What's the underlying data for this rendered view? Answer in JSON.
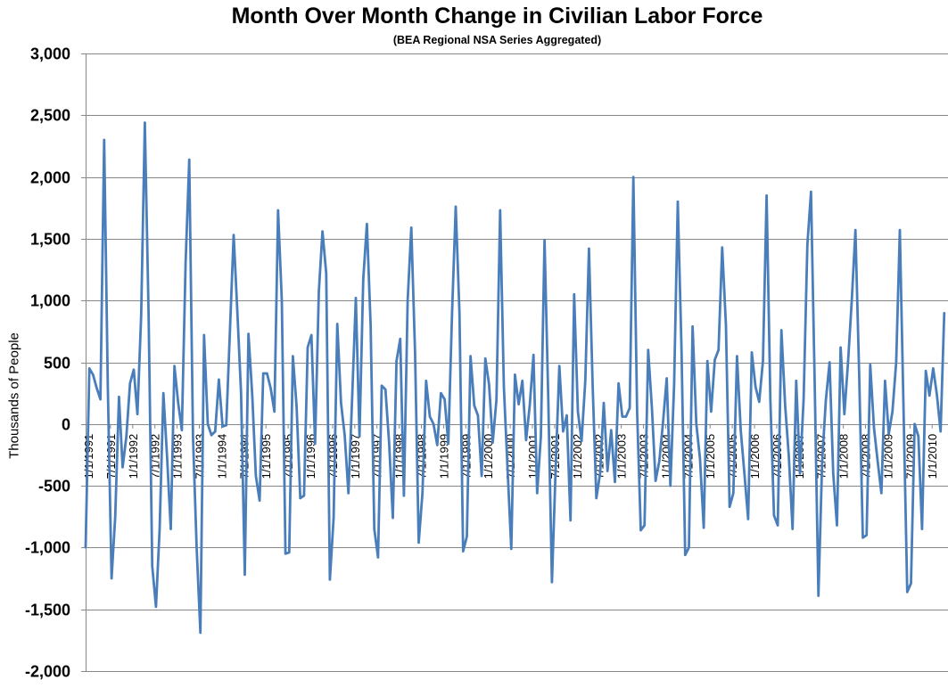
{
  "chart_data": {
    "type": "line",
    "title": "Month Over Month Change in Civilian Labor Force",
    "subtitle": "(BEA Regional NSA Series Aggregated)",
    "ylabel": "Thousands of People",
    "xlabel": "",
    "ylim": [
      -2000,
      3000
    ],
    "ytick_step": 500,
    "ytick_labels": [
      "3,000",
      "2,500",
      "2,000",
      "1,500",
      "1,000",
      "500",
      "0",
      "-500",
      "-1,000",
      "-1,500",
      "-2,000"
    ],
    "grid": "horizontal",
    "legend": "none",
    "line_color": "#4a7ebb",
    "x_start": "1/1/1991",
    "x_end": "1/1/2011",
    "x_tick_labels": [
      "1/1/1991",
      "7/1/1991",
      "1/1/1992",
      "7/1/1992",
      "1/1/1993",
      "7/1/1993",
      "1/1/1994",
      "7/1/1994",
      "1/1/1995",
      "7/1/1995",
      "1/1/1996",
      "7/1/1996",
      "1/1/1997",
      "7/1/1997",
      "1/1/1998",
      "7/1/1998",
      "1/1/1999",
      "7/1/1999",
      "1/1/2000",
      "7/1/2000",
      "1/1/2001",
      "7/1/2001",
      "1/1/2002",
      "7/1/2002",
      "1/1/2003",
      "7/1/2003",
      "1/1/2004",
      "7/1/2004",
      "1/1/2005",
      "7/1/2005",
      "1/1/2006",
      "7/1/2006",
      "1/1/2007",
      "7/1/2007",
      "1/1/2008",
      "7/1/2008",
      "1/1/2009",
      "7/1/2009",
      "1/1/2010"
    ],
    "values": [
      -1000,
      450,
      400,
      290,
      200,
      2300,
      300,
      -1250,
      -750,
      220,
      -350,
      -100,
      330,
      440,
      80,
      880,
      2440,
      900,
      -1150,
      -1480,
      -850,
      250,
      -260,
      -850,
      470,
      170,
      -50,
      1300,
      2140,
      -100,
      -1000,
      -1690,
      720,
      0,
      -90,
      -60,
      360,
      -20,
      -10,
      770,
      1530,
      900,
      250,
      -1220,
      730,
      240,
      -420,
      -620,
      410,
      410,
      290,
      100,
      1730,
      1000,
      -1050,
      -1040,
      550,
      140,
      -600,
      -580,
      620,
      720,
      -160,
      1070,
      1560,
      1220,
      -1260,
      -760,
      810,
      170,
      -90,
      -560,
      200,
      1020,
      -100,
      1170,
      1620,
      800,
      -850,
      -1080,
      310,
      280,
      -150,
      -760,
      510,
      690,
      -580,
      1000,
      1590,
      580,
      -960,
      -560,
      350,
      60,
      0,
      -170,
      250,
      200,
      -160,
      900,
      1760,
      900,
      -1030,
      -910,
      550,
      150,
      70,
      -420,
      530,
      320,
      -150,
      200,
      1730,
      300,
      -360,
      -1010,
      400,
      160,
      350,
      -130,
      150,
      560,
      -560,
      -100,
      1490,
      200,
      -1280,
      -350,
      470,
      -60,
      70,
      -780,
      1050,
      100,
      -140,
      350,
      1420,
      300,
      -600,
      -400,
      170,
      -380,
      -50,
      -470,
      330,
      60,
      60,
      130,
      2000,
      100,
      -860,
      -820,
      600,
      130,
      -460,
      -300,
      10,
      370,
      -500,
      320,
      1800,
      600,
      -1060,
      -1000,
      790,
      0,
      -280,
      -840,
      510,
      100,
      520,
      600,
      1430,
      800,
      -670,
      -560,
      550,
      -50,
      -400,
      -770,
      580,
      300,
      180,
      510,
      1850,
      200,
      -740,
      -820,
      760,
      150,
      -260,
      -850,
      350,
      -400,
      200,
      1450,
      1880,
      300,
      -1390,
      -300,
      190,
      500,
      -400,
      -820,
      620,
      80,
      500,
      1000,
      1570,
      400,
      -920,
      -900,
      480,
      -30,
      -300,
      -560,
      350,
      -80,
      100,
      500,
      1570,
      100,
      -1360,
      -1290,
      0,
      -100,
      -850,
      430,
      230,
      450,
      240,
      -60,
      900
    ]
  }
}
